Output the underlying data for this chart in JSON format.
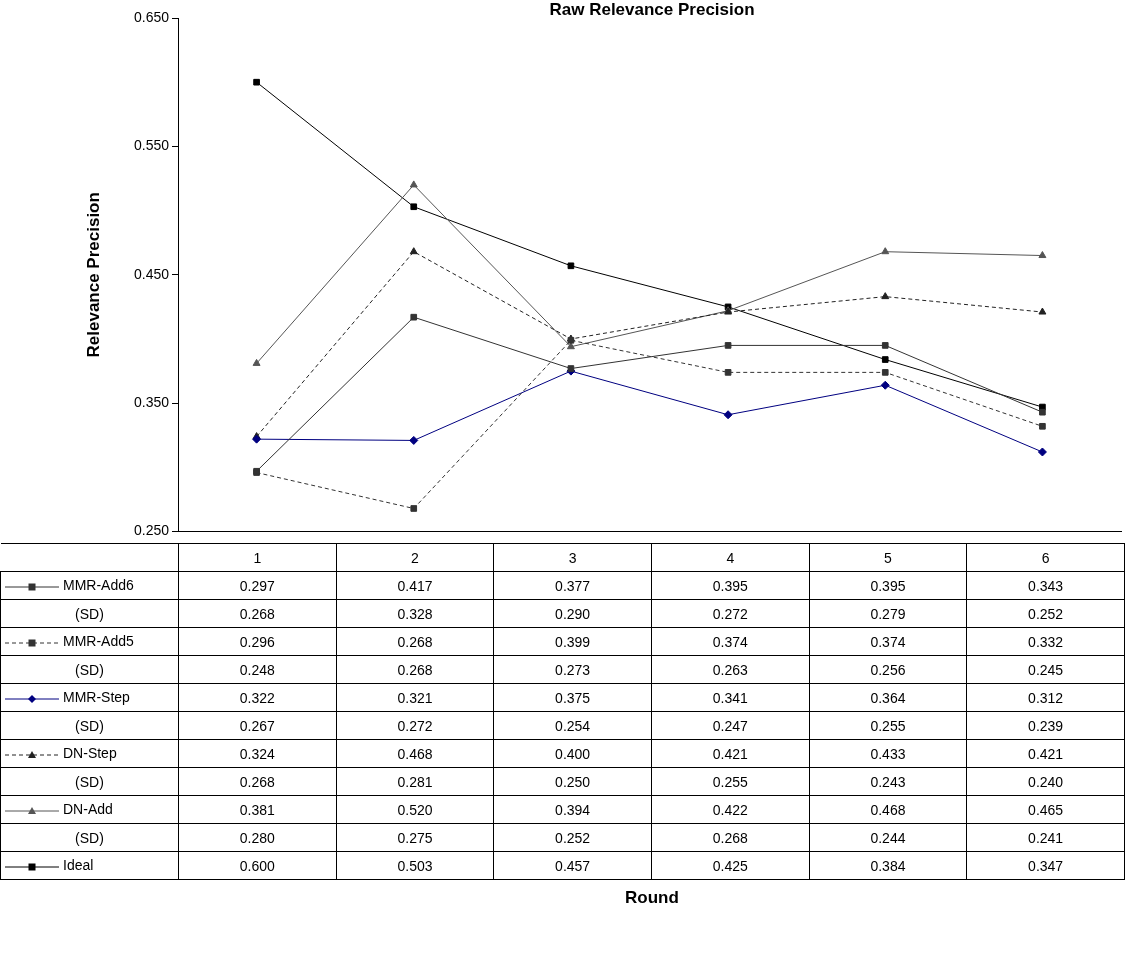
{
  "chart_data": {
    "type": "line",
    "title": "Raw Relevance Precision",
    "ylabel": "Relevance Precision",
    "categories": [
      "1",
      "2",
      "3",
      "4",
      "5",
      "6"
    ],
    "ylim": [
      0.25,
      0.65
    ],
    "yticks": [
      {
        "value": 0.25,
        "label": "0.250"
      },
      {
        "value": 0.35,
        "label": "0.350"
      },
      {
        "value": 0.45,
        "label": "0.450"
      },
      {
        "value": 0.55,
        "label": "0.550"
      },
      {
        "value": 0.65,
        "label": "0.650"
      }
    ],
    "grid": false,
    "legend": "bottom",
    "series": [
      {
        "name": "MMR-Add6",
        "color": "#333333",
        "marker": "square",
        "line_style": "solid",
        "values": [
          0.297,
          0.417,
          0.377,
          0.395,
          0.395,
          0.343
        ],
        "value_labels": [
          "0.297",
          "0.417",
          "0.377",
          "0.395",
          "0.395",
          "0.343"
        ]
      },
      {
        "name": "MMR-Add5",
        "color": "#333333",
        "marker": "square",
        "line_style": "dashed",
        "values": [
          0.296,
          0.268,
          0.399,
          0.374,
          0.374,
          0.332
        ],
        "value_labels": [
          "0.296",
          "0.268",
          "0.399",
          "0.374",
          "0.374",
          "0.332"
        ]
      },
      {
        "name": "MMR-Step",
        "color": "#000080",
        "marker": "diamond",
        "line_style": "solid",
        "values": [
          0.322,
          0.321,
          0.375,
          0.341,
          0.364,
          0.312
        ],
        "value_labels": [
          "0.322",
          "0.321",
          "0.375",
          "0.341",
          "0.364",
          "0.312"
        ]
      },
      {
        "name": "DN-Step",
        "color": "#222222",
        "marker": "triangle",
        "line_style": "dashed",
        "values": [
          0.324,
          0.468,
          0.4,
          0.421,
          0.433,
          0.421
        ],
        "value_labels": [
          "0.324",
          "0.468",
          "0.400",
          "0.421",
          "0.433",
          "0.421"
        ]
      },
      {
        "name": "DN-Add",
        "color": "#555555",
        "marker": "triangle",
        "line_style": "solid",
        "values": [
          0.381,
          0.52,
          0.394,
          0.422,
          0.468,
          0.465
        ],
        "value_labels": [
          "0.381",
          "0.520",
          "0.394",
          "0.422",
          "0.468",
          "0.465"
        ]
      },
      {
        "name": "Ideal",
        "color": "#000000",
        "marker": "square",
        "line_style": "solid",
        "values": [
          0.6,
          0.503,
          0.457,
          0.425,
          0.384,
          0.347
        ],
        "value_labels": [
          "0.600",
          "0.503",
          "0.457",
          "0.425",
          "0.384",
          "0.347"
        ]
      }
    ],
    "annotations": [
      "(SD)",
      "0.268",
      "0.328",
      "0.290",
      "0.272",
      "0.279",
      "0.252",
      "(SD)",
      "0.248",
      "0.268",
      "0.273",
      "0.263",
      "0.256",
      "0.245",
      "(SD)",
      "0.267",
      "0.272",
      "0.254",
      "0.247",
      "0.255",
      "0.239",
      "(SD)",
      "0.268",
      "0.281",
      "0.250",
      "0.255",
      "0.243",
      "0.240",
      "(SD)",
      "0.280",
      "0.275",
      "0.252",
      "0.268",
      "0.244",
      "0.241",
      "Round"
    ]
  }
}
